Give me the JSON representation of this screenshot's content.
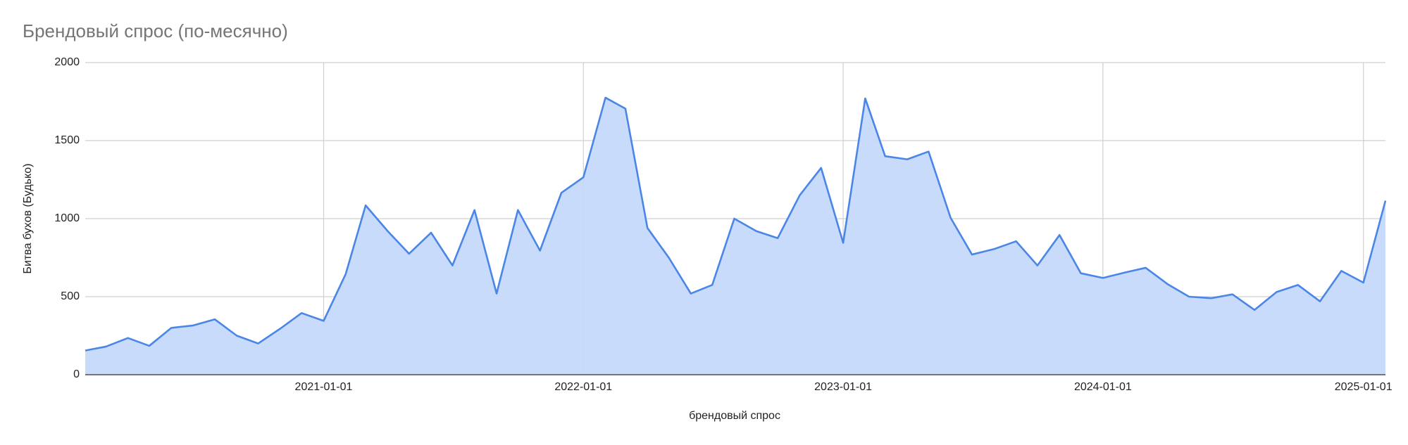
{
  "chart_data": {
    "type": "area",
    "title": "Брендовый спрос (по-месячно)",
    "x_label": "брендовый спрос",
    "y_label": "Битва бухов (Будько)",
    "x": [
      "2020-02-01",
      "2020-03-01",
      "2020-04-01",
      "2020-05-01",
      "2020-06-01",
      "2020-07-01",
      "2020-08-01",
      "2020-09-01",
      "2020-10-01",
      "2020-11-01",
      "2020-12-01",
      "2021-01-01",
      "2021-02-01",
      "2021-03-01",
      "2021-04-01",
      "2021-05-01",
      "2021-06-01",
      "2021-07-01",
      "2021-08-01",
      "2021-09-01",
      "2021-10-01",
      "2021-11-01",
      "2021-12-01",
      "2022-01-01",
      "2022-02-01",
      "2022-03-01",
      "2022-04-01",
      "2022-05-01",
      "2022-06-01",
      "2022-07-01",
      "2022-08-01",
      "2022-09-01",
      "2022-10-01",
      "2022-11-01",
      "2022-12-01",
      "2023-01-01",
      "2023-02-01",
      "2023-03-01",
      "2023-04-01",
      "2023-05-01",
      "2023-06-01",
      "2023-07-01",
      "2023-08-01",
      "2023-09-01",
      "2023-10-01",
      "2023-11-01",
      "2023-12-01",
      "2024-01-01",
      "2024-02-01",
      "2024-03-01",
      "2024-04-01",
      "2024-05-01",
      "2024-06-01",
      "2024-07-01",
      "2024-08-01",
      "2024-09-01",
      "2024-10-01",
      "2024-11-01",
      "2024-12-01",
      "2025-01-01",
      "2025-02-01"
    ],
    "values": [
      155,
      180,
      235,
      185,
      300,
      315,
      355,
      250,
      200,
      295,
      395,
      345,
      645,
      1085,
      920,
      775,
      910,
      700,
      1055,
      520,
      1055,
      795,
      1165,
      1265,
      1775,
      1705,
      940,
      750,
      520,
      575,
      1000,
      920,
      875,
      1150,
      1325,
      845,
      1770,
      1400,
      1380,
      1430,
      1005,
      770,
      805,
      855,
      700,
      895,
      650,
      620,
      655,
      685,
      580,
      500,
      490,
      515,
      415,
      530,
      575,
      470,
      665,
      590,
      1115
    ],
    "color": "#4a86e8",
    "fill_color": "#c6d9fb",
    "xlim": [
      "2020-02-01",
      "2025-02-01"
    ],
    "xticks": [
      "2021-01-01",
      "2022-01-01",
      "2023-01-01",
      "2024-01-01",
      "2025-01-01"
    ],
    "ylim": [
      0,
      2000
    ],
    "yticks": [
      0,
      500,
      1000,
      1500,
      2000
    ],
    "grid": true
  }
}
